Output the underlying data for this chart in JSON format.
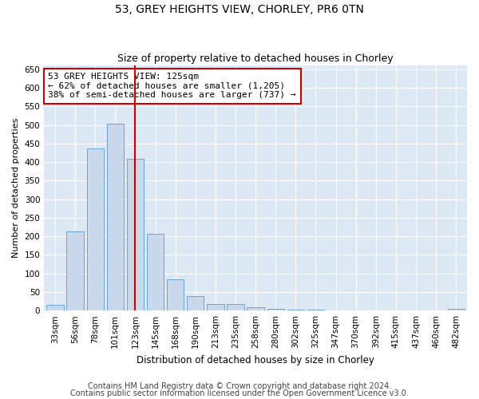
{
  "title1": "53, GREY HEIGHTS VIEW, CHORLEY, PR6 0TN",
  "title2": "Size of property relative to detached houses in Chorley",
  "xlabel": "Distribution of detached houses by size in Chorley",
  "ylabel": "Number of detached properties",
  "categories": [
    "33sqm",
    "56sqm",
    "78sqm",
    "101sqm",
    "123sqm",
    "145sqm",
    "168sqm",
    "190sqm",
    "213sqm",
    "235sqm",
    "258sqm",
    "280sqm",
    "302sqm",
    "325sqm",
    "347sqm",
    "370sqm",
    "392sqm",
    "415sqm",
    "437sqm",
    "460sqm",
    "482sqm"
  ],
  "values": [
    15,
    213,
    437,
    503,
    408,
    207,
    84,
    38,
    18,
    18,
    10,
    5,
    3,
    2,
    1,
    1,
    1,
    1,
    0,
    0,
    4
  ],
  "bar_color": "#c9d9eb",
  "bar_edge_color": "#5b9bd5",
  "vline_color": "#cc0000",
  "vline_x": 4.0,
  "annotation_text": "53 GREY HEIGHTS VIEW: 125sqm\n← 62% of detached houses are smaller (1,205)\n38% of semi-detached houses are larger (737) →",
  "annotation_box_color": "white",
  "annotation_box_edge_color": "#cc0000",
  "ylim": [
    0,
    660
  ],
  "yticks": [
    0,
    50,
    100,
    150,
    200,
    250,
    300,
    350,
    400,
    450,
    500,
    550,
    600,
    650
  ],
  "footnote1": "Contains HM Land Registry data © Crown copyright and database right 2024.",
  "footnote2": "Contains public sector information licensed under the Open Government Licence v3.0.",
  "plot_bg_color": "#dce9f5",
  "title1_fontsize": 10,
  "title2_fontsize": 9,
  "annot_fontsize": 8,
  "tick_fontsize": 7.5,
  "ylabel_fontsize": 8,
  "xlabel_fontsize": 8.5,
  "footnote_fontsize": 7
}
